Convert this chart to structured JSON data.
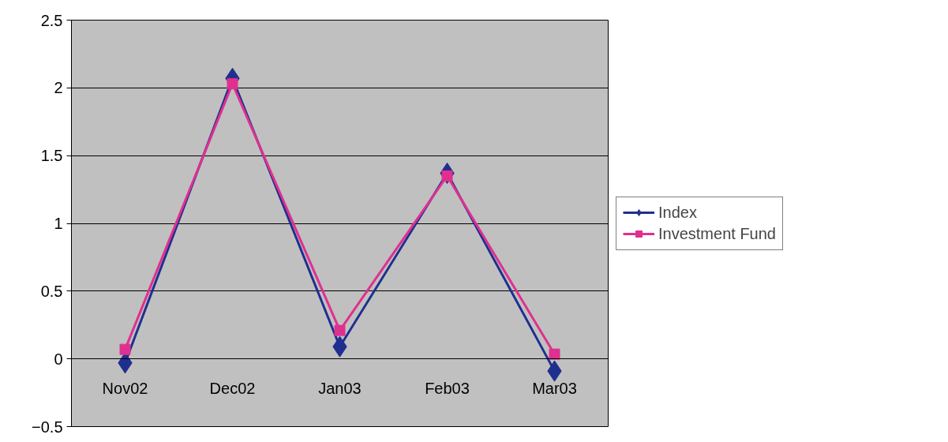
{
  "chart_data": {
    "type": "line",
    "categories": [
      "Nov02",
      "Dec02",
      "Jan03",
      "Feb03",
      "Mar03"
    ],
    "series": [
      {
        "name": "Index",
        "color": "#1f2f8f",
        "values": [
          -0.03,
          2.07,
          0.09,
          1.37,
          -0.09
        ],
        "marker": "diamond"
      },
      {
        "name": "Investment Fund",
        "color": "#e0308f",
        "values": [
          0.07,
          2.03,
          0.21,
          1.35,
          0.035
        ],
        "marker": "square"
      }
    ],
    "ylim": [
      -0.5,
      2.5
    ],
    "yticks": [
      -0.5,
      0,
      0.5,
      1,
      1.5,
      2,
      2.5
    ],
    "grid": "y",
    "legend": "right",
    "line_style": "solid"
  }
}
